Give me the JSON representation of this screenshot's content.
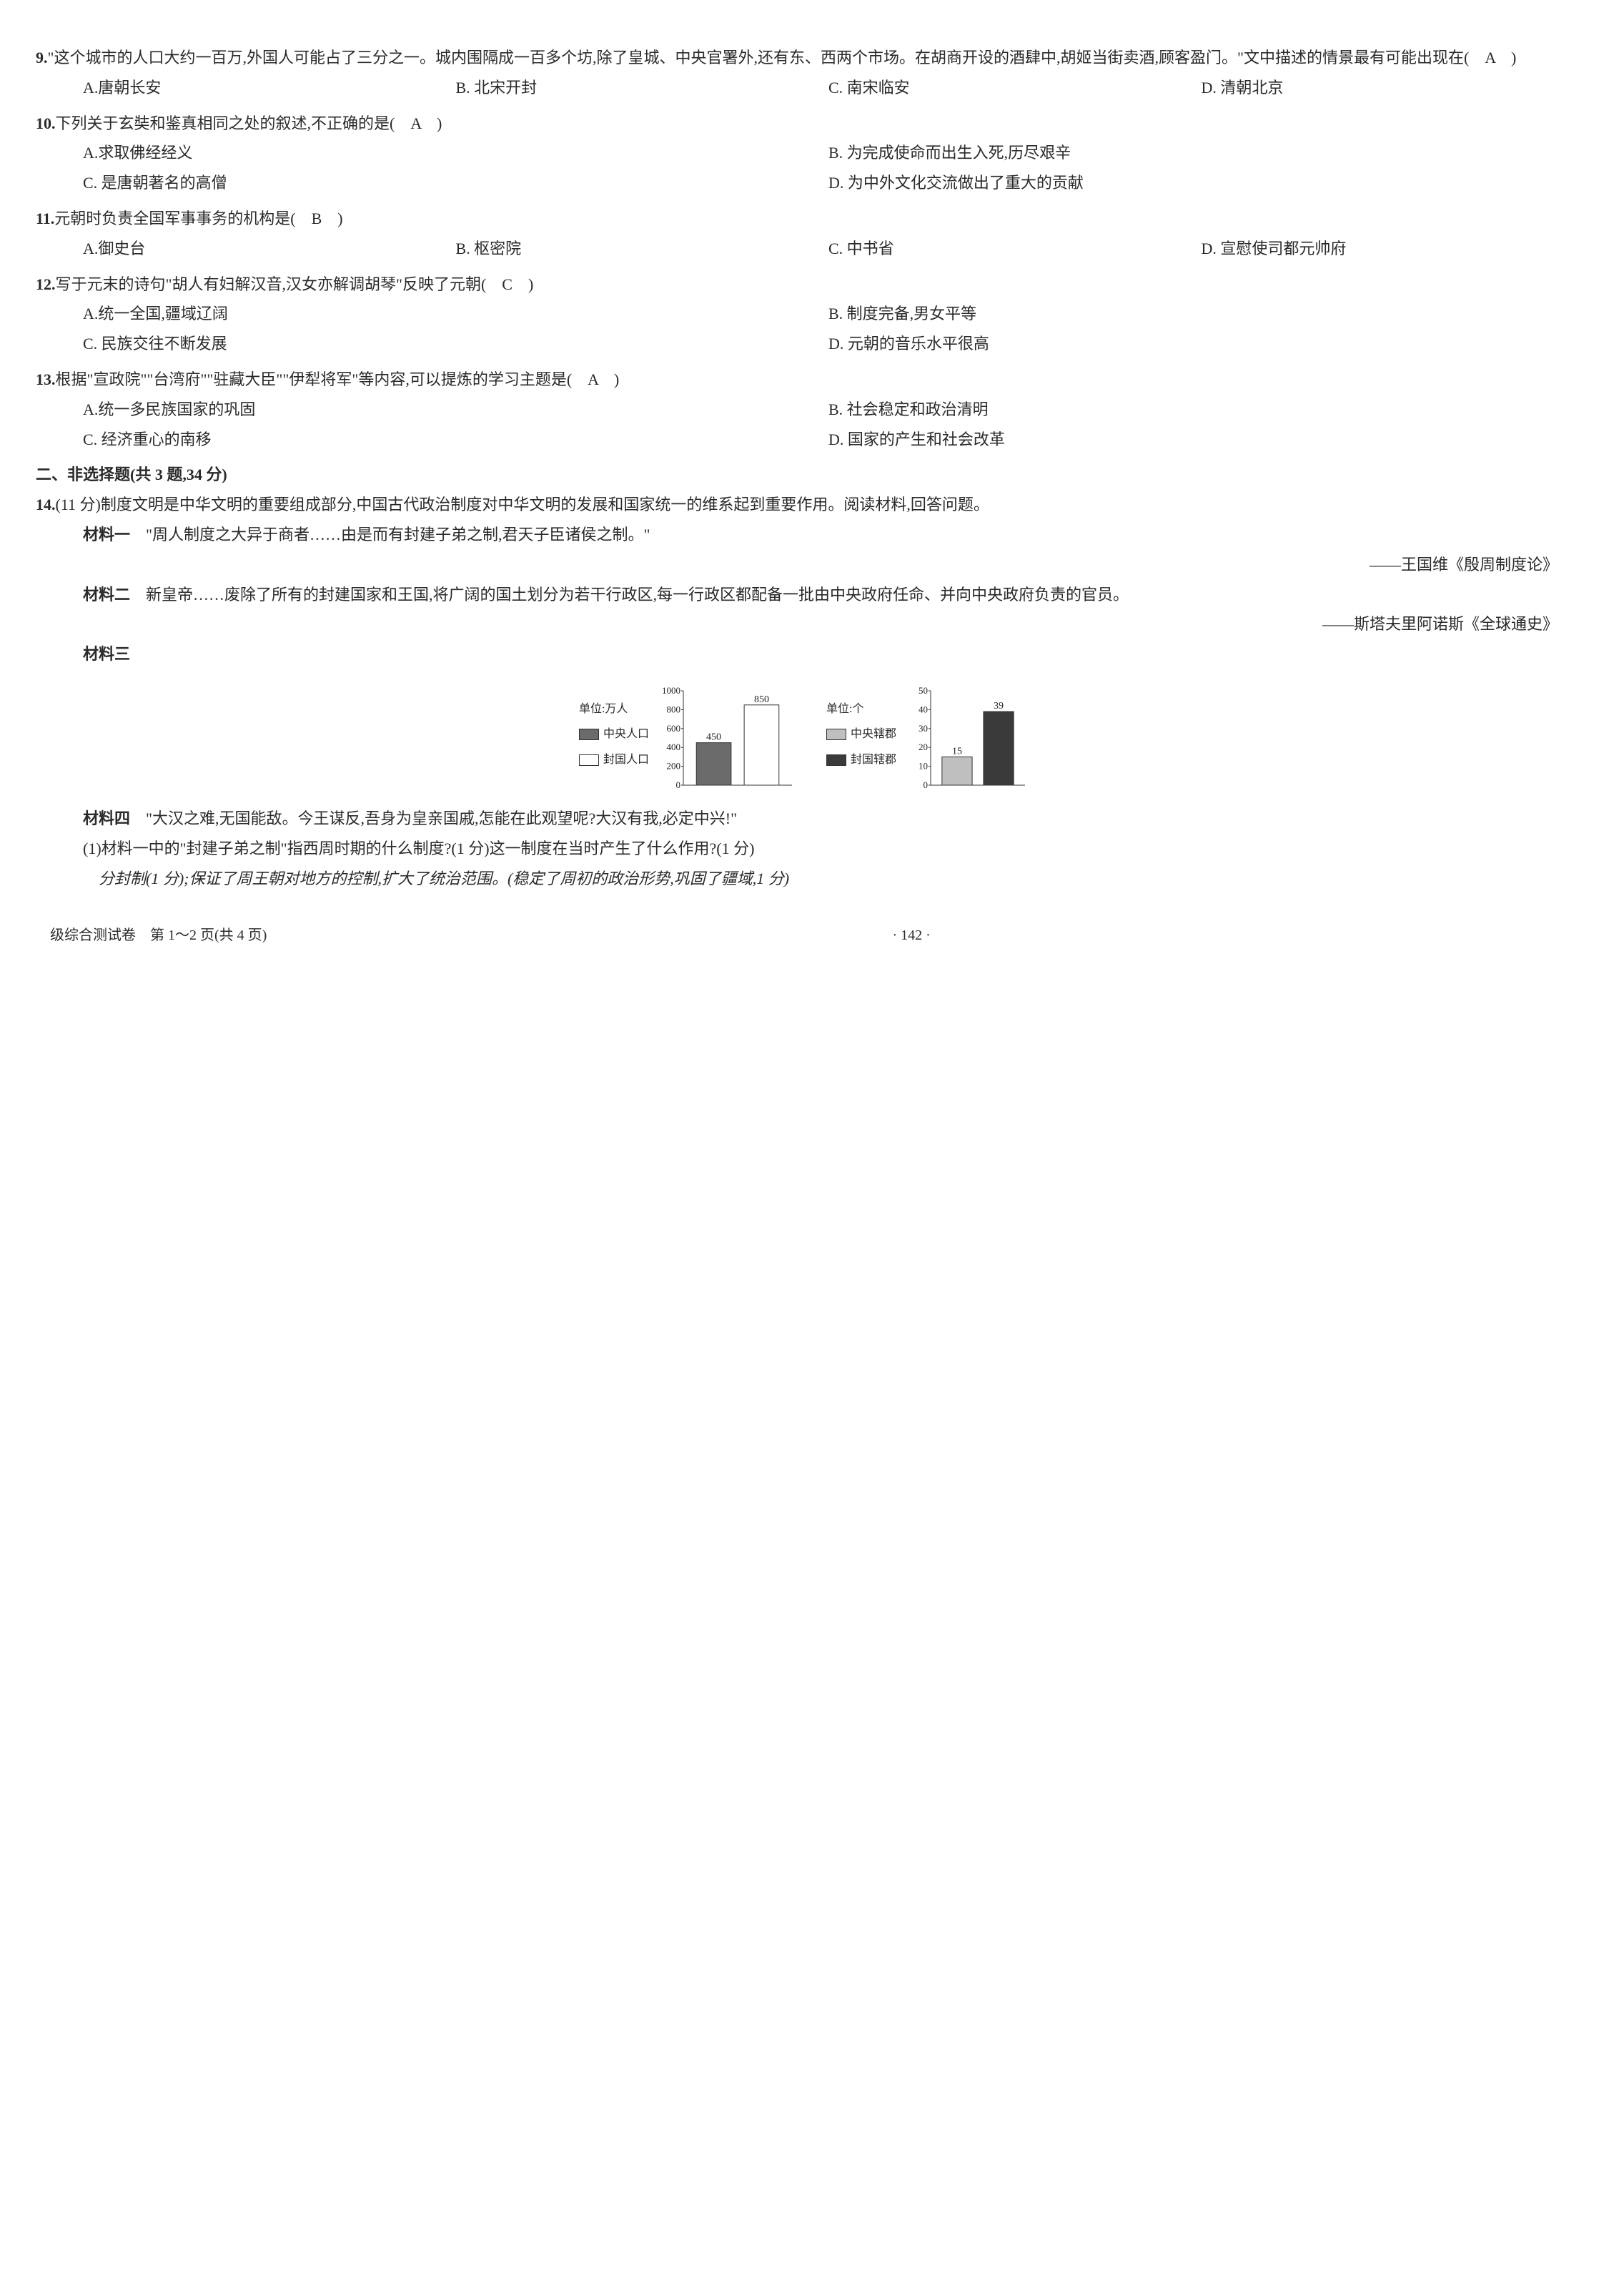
{
  "q9": {
    "num": "9.",
    "stem": "\"这个城市的人口大约一百万,外国人可能占了三分之一。城内围隔成一百多个坊,除了皇城、中央官署外,还有东、西两个市场。在胡商开设的酒肆中,胡姬当街卖酒,顾客盈门。\"文中描述的情景最有可能出现在(　A　)",
    "opts": {
      "A": "A.唐朝长安",
      "B": "B. 北宋开封",
      "C": "C. 南宋临安",
      "D": "D. 清朝北京"
    }
  },
  "q10": {
    "num": "10.",
    "stem": "下列关于玄奘和鉴真相同之处的叙述,不正确的是(　A　)",
    "opts": {
      "A": "A.求取佛经经义",
      "B": "B. 为完成使命而出生入死,历尽艰辛",
      "C": "C. 是唐朝著名的高僧",
      "D": "D. 为中外文化交流做出了重大的贡献"
    }
  },
  "q11": {
    "num": "11.",
    "stem": "元朝时负责全国军事事务的机构是(　B　)",
    "opts": {
      "A": "A.御史台",
      "B": "B. 枢密院",
      "C": "C. 中书省",
      "D": "D. 宣慰使司都元帅府"
    }
  },
  "q12": {
    "num": "12.",
    "stem": "写于元末的诗句\"胡人有妇解汉音,汉女亦解调胡琴\"反映了元朝(　C　)",
    "opts": {
      "A": "A.统一全国,疆域辽阔",
      "B": "B. 制度完备,男女平等",
      "C": "C. 民族交往不断发展",
      "D": "D. 元朝的音乐水平很高"
    }
  },
  "q13": {
    "num": "13.",
    "stem": "根据\"宣政院\"\"台湾府\"\"驻藏大臣\"\"伊犁将军\"等内容,可以提炼的学习主题是(　A　)",
    "opts": {
      "A": "A.统一多民族国家的巩固",
      "B": "B. 社会稳定和政治清明",
      "C": "C. 经济重心的南移",
      "D": "D. 国家的产生和社会改革"
    }
  },
  "section2_title": "二、非选择题(共 3 题,34 分)",
  "q14": {
    "num": "14.",
    "stem": "(11 分)制度文明是中华文明的重要组成部分,中国古代政治制度对中华文明的发展和国家统一的维系起到重要作用。阅读材料,回答问题。",
    "m1_label": "材料一",
    "m1_text": "\"周人制度之大异于商者……由是而有封建子弟之制,君天子臣诸侯之制。\"",
    "m1_source": "——王国维《殷周制度论》",
    "m2_label": "材料二",
    "m2_text": "新皇帝……废除了所有的封建国家和王国,将广阔的国土划分为若干行政区,每一行政区都配备一批由中央政府任命、并向中央政府负责的官员。",
    "m2_source": "——斯塔夫里阿诺斯《全球通史》",
    "m3_label": "材料三",
    "m4_label": "材料四",
    "m4_text": "\"大汉之难,无国能敌。今王谋反,吾身为皇亲国戚,怎能在此观望呢?大汉有我,必定中兴!\"",
    "sub1": "(1)材料一中的\"封建子弟之制\"指西周时期的什么制度?(1 分)这一制度在当时产生了什么作用?(1 分)",
    "ans1": "分封制(1 分);保证了周王朝对地方的控制,扩大了统治范围。(稳定了周初的政治形势,巩固了疆域,1 分)"
  },
  "chart1": {
    "unit": "单位:万人",
    "legend": {
      "a": "中央人口",
      "b": "封国人口"
    },
    "legend_colors": {
      "a": "#6b6b6b",
      "b": "#ffffff"
    },
    "ymax": 1000,
    "ytick_step": 200,
    "bars": [
      {
        "value": 450,
        "fill": "#6b6b6b",
        "label": "450"
      },
      {
        "value": 850,
        "fill": "#ffffff",
        "label": "850"
      }
    ],
    "axis_color": "#333333",
    "bg": "#ffffff"
  },
  "chart2": {
    "unit": "单位:个",
    "legend": {
      "a": "中央辖郡",
      "b": "封国辖郡"
    },
    "legend_colors": {
      "a": "#bfbfbf",
      "b": "#3a3a3a"
    },
    "ymax": 50,
    "ytick_step": 10,
    "bars": [
      {
        "value": 15,
        "fill": "#bfbfbf",
        "label": "15"
      },
      {
        "value": 39,
        "fill": "#3a3a3a",
        "label": "39"
      }
    ],
    "axis_color": "#333333",
    "bg": "#ffffff"
  },
  "footer": {
    "left": "级综合测试卷　第 1～2 页(共 4 页)",
    "center": "· 142 ·"
  }
}
